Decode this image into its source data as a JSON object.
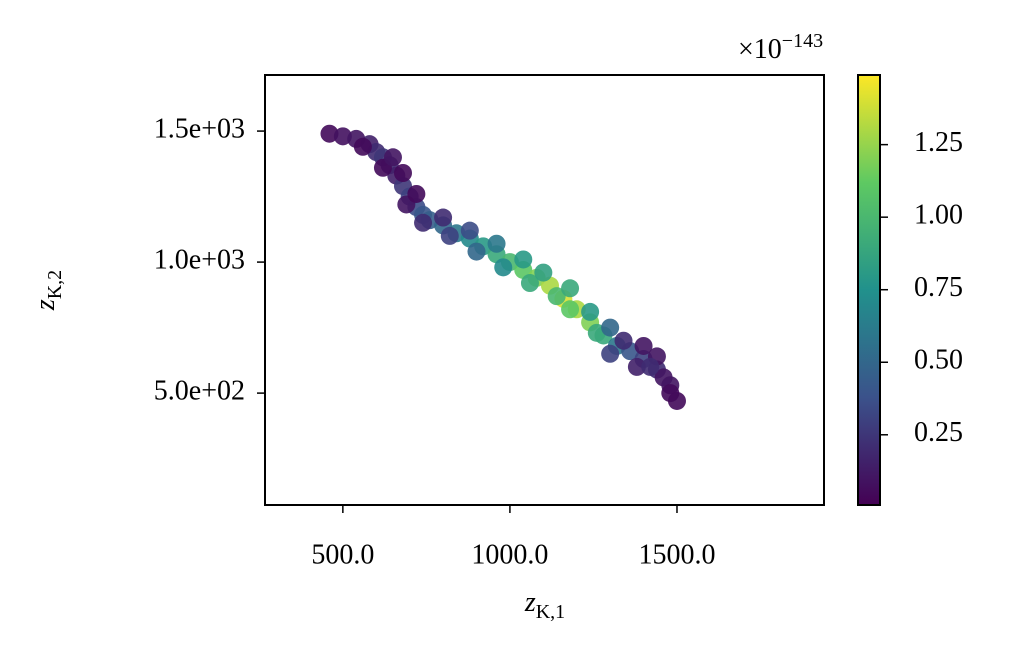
{
  "chart_data": {
    "type": "scatter",
    "xlabel": {
      "base": "z",
      "sub": "K,1"
    },
    "ylabel": {
      "base": "z",
      "sub": "K,2"
    },
    "xlim": [
      267,
      1940
    ],
    "ylim": [
      73,
      1714
    ],
    "xticks": [
      {
        "value": 500,
        "label": "500.0"
      },
      {
        "value": 1000,
        "label": "1000.0"
      },
      {
        "value": 1500,
        "label": "1500.0"
      }
    ],
    "yticks": [
      {
        "value": 500,
        "label": "5.0e+02"
      },
      {
        "value": 1000,
        "label": "1.0e+03"
      },
      {
        "value": 1500,
        "label": "1.5e+03"
      }
    ],
    "colormap": "viridis",
    "clim": [
      0.008,
      1.49
    ],
    "cticks": [
      0.25,
      {
        "value": 0.5,
        "label": "0.50"
      },
      0.75,
      {
        "value": 1.0,
        "label": "1.00"
      },
      1.25
    ],
    "colorbar_offset": {
      "base": "×10",
      "exponent": "−143"
    },
    "x": [
      460,
      500,
      540,
      580,
      600,
      620,
      640,
      660,
      680,
      700,
      720,
      740,
      760,
      800,
      840,
      880,
      920,
      960,
      1000,
      1040,
      1080,
      1120,
      1160,
      1200,
      1240,
      1280,
      1320,
      1360,
      1400,
      1440,
      1480,
      1500,
      560,
      620,
      650,
      680,
      690,
      720,
      740,
      800,
      820,
      880,
      900,
      960,
      980,
      1040,
      1060,
      1100,
      1140,
      1180,
      1180,
      1240,
      1260,
      1300,
      1300,
      1340,
      1380,
      1400,
      1440,
      1460,
      1420,
      1480
    ],
    "y": [
      1490,
      1480,
      1470,
      1450,
      1420,
      1400,
      1370,
      1330,
      1290,
      1250,
      1210,
      1180,
      1160,
      1140,
      1110,
      1090,
      1060,
      1030,
      1000,
      970,
      940,
      910,
      860,
      820,
      770,
      720,
      680,
      660,
      630,
      590,
      530,
      470,
      1440,
      1360,
      1400,
      1340,
      1220,
      1260,
      1150,
      1170,
      1100,
      1120,
      1040,
      1070,
      980,
      1010,
      920,
      960,
      870,
      900,
      820,
      810,
      730,
      750,
      650,
      700,
      600,
      680,
      640,
      560,
      600,
      500
    ],
    "c": [
      0.05,
      0.08,
      0.1,
      0.15,
      0.2,
      0.25,
      0.2,
      0.15,
      0.25,
      0.3,
      0.35,
      0.4,
      0.45,
      0.5,
      0.6,
      0.7,
      0.8,
      0.9,
      1.0,
      1.1,
      1.2,
      1.3,
      1.4,
      1.3,
      1.2,
      0.9,
      0.6,
      0.4,
      0.3,
      0.2,
      0.1,
      0.05,
      0.05,
      0.05,
      0.1,
      0.05,
      0.1,
      0.05,
      0.2,
      0.2,
      0.3,
      0.35,
      0.5,
      0.6,
      0.7,
      0.8,
      0.9,
      0.85,
      1.0,
      0.9,
      1.1,
      0.8,
      0.9,
      0.5,
      0.3,
      0.2,
      0.15,
      0.1,
      0.1,
      0.1,
      0.2,
      0.05
    ]
  }
}
